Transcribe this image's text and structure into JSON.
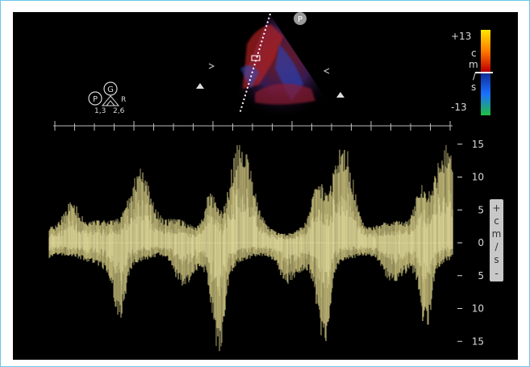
{
  "probe_badge": "P",
  "color_scale": {
    "max_label": "+13",
    "min_label": "-13",
    "unit_chars": [
      "c",
      "m",
      "/",
      "s"
    ]
  },
  "mode_icons": {
    "p_label": "P",
    "g_label": "G",
    "r_label": "R",
    "left_value": "1,3",
    "right_value": "2,6"
  },
  "velocity_axis": {
    "tick_labels": [
      "15",
      "10",
      "5",
      "0",
      "5",
      "10",
      "15"
    ],
    "tick_values": [
      15,
      10,
      5,
      0,
      -5,
      -10,
      -15
    ],
    "unit_chars": [
      "+",
      "c",
      "m",
      "/",
      "s",
      "-"
    ]
  },
  "colors": {
    "waveform": "#d9cf86",
    "waveform_core": "#f2ecb0",
    "background": "#000000",
    "border": "#6cc6e8"
  }
}
